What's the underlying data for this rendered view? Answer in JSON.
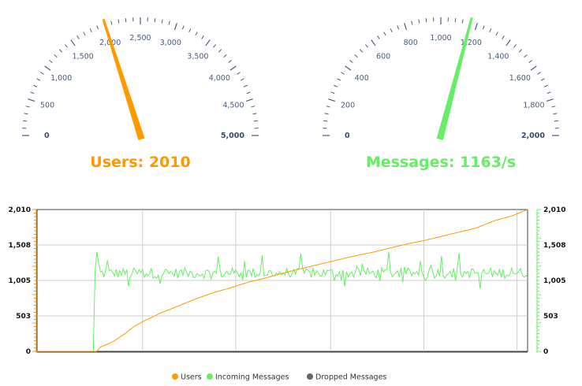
{
  "colors": {
    "users": "#ff9900",
    "messages": "#66ee66",
    "dropped": "#666666",
    "tick": "#4a5a7a",
    "grid": "#cccccc",
    "axis": "#333333"
  },
  "gauges": [
    {
      "id": "users",
      "title_prefix": "Users:",
      "value_text": "2010",
      "title": "Users: 2010",
      "value": 2010,
      "min": 0,
      "max": 5000,
      "major_step": 500,
      "minor_per_major": 5,
      "tick_labels": [
        "0",
        "500",
        "1,000",
        "1,500",
        "2,000",
        "2,500",
        "3,000",
        "3,500",
        "4,000",
        "4,500",
        "5,000"
      ],
      "color": "#ff9900"
    },
    {
      "id": "messages",
      "title_prefix": "Messages:",
      "value_text": "1163/s",
      "title": "Messages: 1163/s",
      "value": 1163,
      "min": 0,
      "max": 2000,
      "major_step": 200,
      "minor_per_major": 5,
      "tick_labels": [
        "0",
        "200",
        "400",
        "600",
        "800",
        "1,000",
        "1,200",
        "1,400",
        "1,600",
        "1,800",
        "2,000"
      ],
      "color": "#66ee66"
    }
  ],
  "chart_data": {
    "type": "line",
    "ylim": [
      0,
      2010
    ],
    "y_ticks": [
      0,
      503,
      1005,
      1508,
      2010
    ],
    "y_tick_labels": [
      "0",
      "503",
      "1,005",
      "1,508",
      "2,010"
    ],
    "x_count": 280,
    "x_gridlines": [
      60,
      113,
      167,
      220,
      273
    ],
    "grid": true,
    "legend_position": "bottom-center",
    "series": [
      {
        "name": "Users",
        "color": "#ff9900",
        "start": 34,
        "anchors": [
          [
            34,
            0
          ],
          [
            36,
            60
          ],
          [
            40,
            100
          ],
          [
            44,
            150
          ],
          [
            50,
            250
          ],
          [
            55,
            350
          ],
          [
            60,
            420
          ],
          [
            70,
            540
          ],
          [
            80,
            640
          ],
          [
            90,
            740
          ],
          [
            100,
            830
          ],
          [
            110,
            900
          ],
          [
            120,
            980
          ],
          [
            130,
            1040
          ],
          [
            140,
            1110
          ],
          [
            150,
            1170
          ],
          [
            160,
            1230
          ],
          [
            170,
            1290
          ],
          [
            180,
            1350
          ],
          [
            190,
            1400
          ],
          [
            200,
            1460
          ],
          [
            210,
            1520
          ],
          [
            220,
            1570
          ],
          [
            230,
            1630
          ],
          [
            240,
            1690
          ],
          [
            250,
            1750
          ],
          [
            260,
            1850
          ],
          [
            270,
            1920
          ],
          [
            279,
            2010
          ]
        ]
      },
      {
        "name": "Incoming Messages",
        "color": "#66ee66",
        "start": 33,
        "base": 1110,
        "spikes": [
          [
            34,
            1410
          ],
          [
            35,
            1250
          ],
          [
            40,
            1290
          ],
          [
            52,
            920
          ],
          [
            70,
            960
          ],
          [
            85,
            1130
          ],
          [
            103,
            1340
          ],
          [
            118,
            1280
          ],
          [
            128,
            1360
          ],
          [
            150,
            1390
          ],
          [
            175,
            920
          ],
          [
            185,
            1240
          ],
          [
            200,
            1410
          ],
          [
            208,
            980
          ],
          [
            218,
            1280
          ],
          [
            230,
            1350
          ],
          [
            240,
            1390
          ],
          [
            252,
            890
          ],
          [
            262,
            1080
          ],
          [
            270,
            1180
          ],
          [
            279,
            1050
          ]
        ]
      },
      {
        "name": "Dropped Messages",
        "color": "#666666",
        "values": []
      }
    ]
  }
}
